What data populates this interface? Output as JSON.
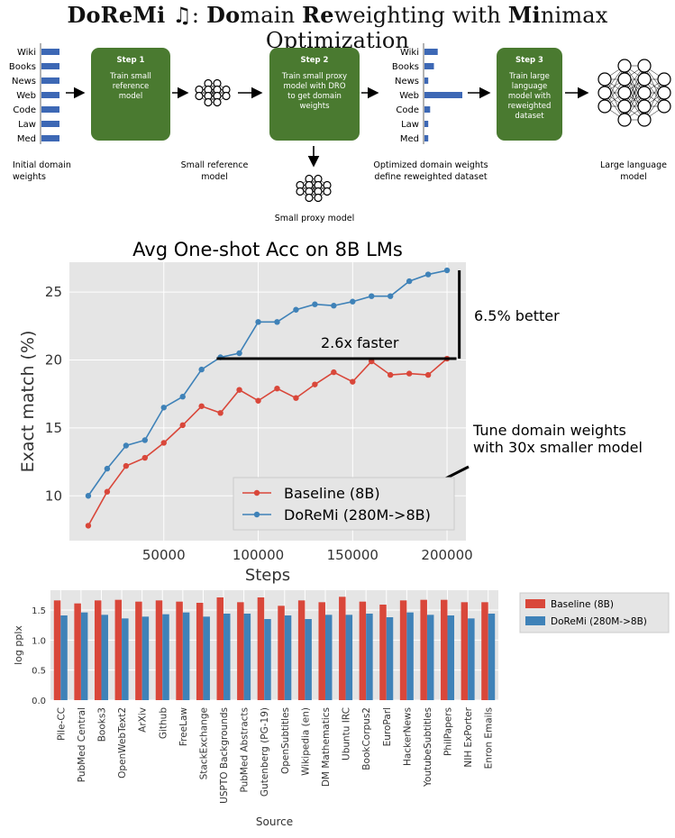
{
  "title": {
    "parts": [
      {
        "text": "Do",
        "bold": true
      },
      {
        "text": "Re",
        "bold": true
      },
      {
        "text": "Mi",
        "bold": true
      },
      {
        "text": " ♫: ",
        "bold": false
      },
      {
        "text": "Do",
        "bold": true
      },
      {
        "text": "main ",
        "bold": false
      },
      {
        "text": "Re",
        "bold": true
      },
      {
        "text": "weighting with ",
        "bold": false
      },
      {
        "text": "Mi",
        "bold": true
      },
      {
        "text": "nimax Optimization",
        "bold": false
      }
    ]
  },
  "diagram": {
    "domains": [
      "Wiki",
      "Books",
      "News",
      "Web",
      "Code",
      "Law",
      "Med"
    ],
    "initial_weights": [
      1,
      1,
      1,
      1,
      1,
      1,
      1
    ],
    "optimized_weights": [
      0.35,
      0.25,
      0.1,
      1.0,
      0.15,
      0.1,
      0.1
    ],
    "steps": [
      {
        "title": "Step 1",
        "body": [
          "Train small",
          "reference",
          "model"
        ]
      },
      {
        "title": "Step 2",
        "body": [
          "Train small proxy",
          "model with DRO",
          "to get domain",
          "weights"
        ]
      },
      {
        "title": "Step 3",
        "body": [
          "Train large",
          "language",
          "model with",
          "reweighted",
          "dataset"
        ]
      }
    ],
    "captions": {
      "initial": [
        "Initial domain",
        "weights"
      ],
      "small_ref": [
        "Small reference",
        "model"
      ],
      "proxy": "Small proxy model",
      "optimized": [
        "Optimized domain weights",
        "define reweighted dataset"
      ],
      "large": [
        "Large language",
        "model"
      ]
    },
    "colors": {
      "step_box": "#4a7a30",
      "bar": "#3d68b5"
    }
  },
  "chart_data": [
    {
      "type": "line",
      "title": "Avg One-shot Acc on 8B LMs",
      "xlabel": "Steps",
      "ylabel": "Exact match (%)",
      "xlim": [
        0,
        210000
      ],
      "ylim": [
        6.7,
        27.2
      ],
      "xticks": [
        50000,
        100000,
        150000,
        200000
      ],
      "yticks": [
        10,
        15,
        20,
        25
      ],
      "grid": true,
      "legend": "lower-right",
      "x": [
        10000,
        20000,
        30000,
        40000,
        50000,
        60000,
        70000,
        80000,
        90000,
        100000,
        110000,
        120000,
        130000,
        140000,
        150000,
        160000,
        170000,
        180000,
        190000,
        200000
      ],
      "series": [
        {
          "name": "Baseline (8B)",
          "color": "#d9473a",
          "values": [
            7.8,
            10.3,
            12.2,
            12.8,
            13.9,
            15.2,
            16.6,
            16.1,
            17.8,
            17.0,
            17.9,
            17.2,
            18.2,
            19.1,
            18.4,
            19.9,
            18.9,
            19.0,
            18.9,
            20.1
          ]
        },
        {
          "name": "DoReMi (280M->8B)",
          "color": "#3f82b8",
          "values": [
            10.0,
            12.0,
            13.7,
            14.1,
            16.5,
            17.3,
            19.3,
            20.2,
            20.5,
            22.8,
            22.8,
            23.7,
            24.1,
            24.0,
            24.3,
            24.7,
            24.7,
            25.8,
            26.3,
            26.6
          ]
        }
      ],
      "annotations": {
        "faster": "2.6x faster",
        "better": "6.5% better",
        "tune": [
          "Tune domain weights",
          "with 30x smaller model"
        ]
      }
    },
    {
      "type": "bar",
      "xlabel": "Source",
      "ylabel": "log pplx",
      "ylim": [
        0,
        1.83
      ],
      "yticks": [
        0.0,
        0.5,
        1.0,
        1.5
      ],
      "grid": true,
      "legend": "right",
      "categories": [
        "Pile-CC",
        "PubMed Central",
        "Books3",
        "OpenWebText2",
        "ArXiv",
        "Github",
        "FreeLaw",
        "StackExchange",
        "USPTO Backgrounds",
        "PubMed Abstracts",
        "Gutenberg (PG-19)",
        "OpenSubtitles",
        "Wikipedia (en)",
        "DM Mathematics",
        "Ubuntu IRC",
        "BookCorpus2",
        "EuroParl",
        "HackerNews",
        "YoutubeSubtitles",
        "PhilPapers",
        "NIH ExPorter",
        "Enron Emails"
      ],
      "series": [
        {
          "name": "Baseline (8B)",
          "color": "#d9473a",
          "values": [
            1.66,
            1.61,
            1.66,
            1.67,
            1.64,
            1.66,
            1.64,
            1.62,
            1.71,
            1.63,
            1.71,
            1.57,
            1.66,
            1.63,
            1.72,
            1.64,
            1.59,
            1.66,
            1.67,
            1.67,
            1.63,
            1.63
          ]
        },
        {
          "name": "DoReMi (280M->8B)",
          "color": "#3f82b8",
          "values": [
            1.41,
            1.46,
            1.42,
            1.36,
            1.39,
            1.43,
            1.46,
            1.39,
            1.44,
            1.44,
            1.35,
            1.41,
            1.35,
            1.42,
            1.42,
            1.44,
            1.38,
            1.46,
            1.42,
            1.41,
            1.36,
            1.44
          ]
        }
      ]
    }
  ]
}
